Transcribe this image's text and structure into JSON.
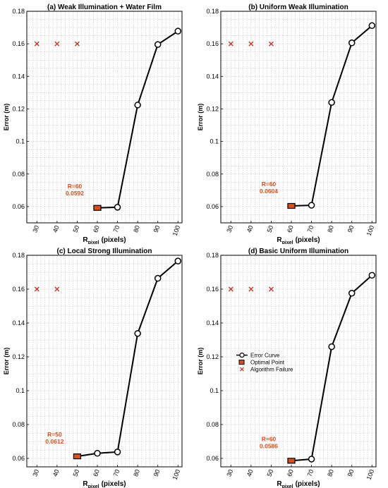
{
  "chart_data": [
    {
      "type": "line",
      "title": "(a) Weak Illumination + Water Film",
      "ylabel": "Error (m)",
      "xlabel_main": "R",
      "xlabel_sub": "pixel",
      "xlabel_unit": "(pixels)",
      "xticks": [
        30,
        40,
        50,
        60,
        70,
        80,
        90,
        100
      ],
      "yticks": [
        0.06,
        0.08,
        0.1,
        0.12,
        0.14,
        0.16,
        0.18
      ],
      "xlim": [
        25,
        102
      ],
      "ylim": [
        0.05,
        0.18
      ],
      "grid": true,
      "series": [
        {
          "name": "Error Curve",
          "x": [
            60,
            70,
            80,
            90,
            100
          ],
          "y": [
            0.0592,
            0.0596,
            0.1224,
            0.1596,
            0.1678
          ]
        },
        {
          "name": "Optimal Point",
          "x": [
            60
          ],
          "y": [
            0.0592
          ]
        },
        {
          "name": "Algorithm Failure",
          "x": [
            30,
            40,
            50
          ],
          "y": [
            0.16,
            0.16,
            0.16
          ]
        }
      ],
      "annotation": {
        "line1": "R=60",
        "line2": "0.0592"
      },
      "legend": null
    },
    {
      "type": "line",
      "title": "(b) Uniform Weak Illumination",
      "ylabel": "Error (m)",
      "xlabel_main": "R",
      "xlabel_sub": "pixel",
      "xlabel_unit": "(pixels)",
      "xticks": [
        30,
        40,
        50,
        60,
        70,
        80,
        90,
        100
      ],
      "yticks": [
        0.06,
        0.08,
        0.1,
        0.12,
        0.14,
        0.16,
        0.18
      ],
      "xlim": [
        25,
        102
      ],
      "ylim": [
        0.05,
        0.18
      ],
      "grid": true,
      "series": [
        {
          "name": "Error Curve",
          "x": [
            60,
            70,
            80,
            90,
            100
          ],
          "y": [
            0.0604,
            0.0608,
            0.124,
            0.1606,
            0.1712
          ]
        },
        {
          "name": "Optimal Point",
          "x": [
            60
          ],
          "y": [
            0.0604
          ]
        },
        {
          "name": "Algorithm Failure",
          "x": [
            30,
            40,
            50
          ],
          "y": [
            0.16,
            0.16,
            0.16
          ]
        }
      ],
      "annotation": {
        "line1": "R=60",
        "line2": "0.0604"
      },
      "legend": null
    },
    {
      "type": "line",
      "title": "(c) Local Strong Illumination",
      "ylabel": "Error (m)",
      "xlabel_main": "R",
      "xlabel_sub": "pixel",
      "xlabel_unit": "(pixels)",
      "xticks": [
        30,
        40,
        50,
        60,
        70,
        80,
        90,
        100
      ],
      "yticks": [
        0.06,
        0.08,
        0.1,
        0.12,
        0.14,
        0.16,
        0.18
      ],
      "xlim": [
        25,
        102
      ],
      "ylim": [
        0.055,
        0.18
      ],
      "grid": true,
      "series": [
        {
          "name": "Error Curve",
          "x": [
            50,
            60,
            70,
            80,
            90,
            100
          ],
          "y": [
            0.0612,
            0.063,
            0.0638,
            0.1338,
            0.1664,
            0.1766
          ]
        },
        {
          "name": "Optimal Point",
          "x": [
            50
          ],
          "y": [
            0.0612
          ]
        },
        {
          "name": "Algorithm Failure",
          "x": [
            30,
            40
          ],
          "y": [
            0.16,
            0.16
          ]
        }
      ],
      "annotation": {
        "line1": "R=50",
        "line2": "0.0612"
      },
      "legend": null
    },
    {
      "type": "line",
      "title": "(d) Basic Uniform Illumination",
      "ylabel": "Error (m)",
      "xlabel_main": "R",
      "xlabel_sub": "pixel",
      "xlabel_unit": "(pixels)",
      "xticks": [
        30,
        40,
        50,
        60,
        70,
        80,
        90,
        100
      ],
      "yticks": [
        0.06,
        0.08,
        0.1,
        0.12,
        0.14,
        0.16,
        0.18
      ],
      "xlim": [
        25,
        102
      ],
      "ylim": [
        0.055,
        0.18
      ],
      "grid": true,
      "series": [
        {
          "name": "Error Curve",
          "x": [
            60,
            70,
            80,
            90,
            100
          ],
          "y": [
            0.0586,
            0.0596,
            0.126,
            0.1576,
            0.1682
          ]
        },
        {
          "name": "Optimal Point",
          "x": [
            60
          ],
          "y": [
            0.0586
          ]
        },
        {
          "name": "Algorithm Failure",
          "x": [
            30,
            40,
            50
          ],
          "y": [
            0.16,
            0.16,
            0.16
          ]
        }
      ],
      "annotation": {
        "line1": "R=60",
        "line2": "0.0586"
      },
      "legend": {
        "placement": "center-left",
        "entries": [
          "Error Curve",
          "Optimal Point",
          "Algorithm Failure"
        ]
      }
    }
  ],
  "colors": {
    "optimal_fill": "#d9501e",
    "failure_mark": "#c0392b",
    "annotation_text": "#d9501e",
    "line": "#000000",
    "grid": "#b8b8b8"
  }
}
